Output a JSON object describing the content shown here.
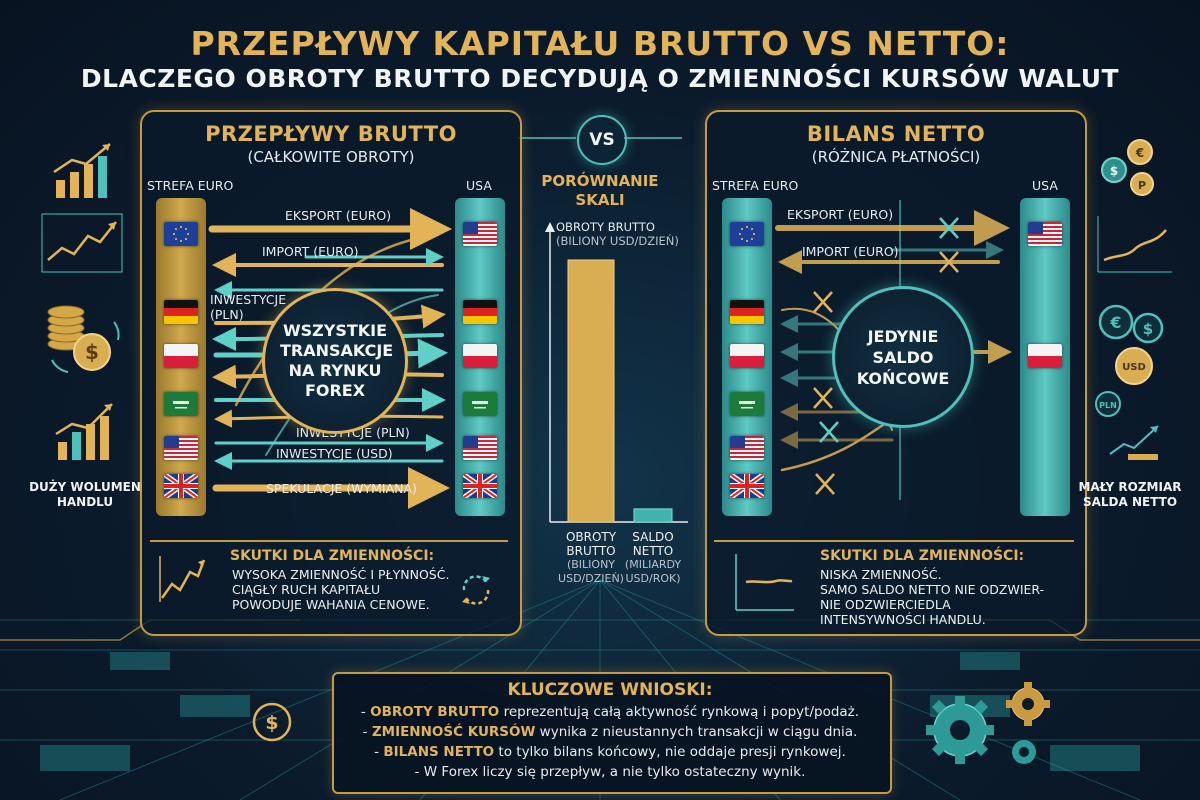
{
  "title": "PRZEPŁYWY KAPITAŁU BRUTTO VS NETTO:",
  "subtitle": "DLACZEGO OBROTY BRUTTO DECYDUJĄ O ZMIENNOŚCI KURSÓW WALUT",
  "vs_label": "VS",
  "left_panel": {
    "title": "PRZEPŁYWY BRUTTO",
    "subtitle": "(CAŁKOWITE OBROTY)",
    "left_column_label": "STREFA EURO",
    "right_column_label": "USA",
    "flows": [
      "EKSPORT (EURO)",
      "IMPORT (EURO)",
      "INWESTYCJE (PLN)",
      "INWESTYCJE (PLN)",
      "INWESTYCJE (USD)",
      "SPEKULACJE (WYMIANA)"
    ],
    "center_text": "WSZYSTKIE TRANSAKCJE NA RYNKU FOREX",
    "effects_title": "SKUTKI DLA ZMIENNOŚCI:",
    "effects_lines": [
      "WYSOKA ZMIENNOŚĆ I PŁYNNOŚĆ.",
      "CIĄGŁY RUCH KAPITAŁU",
      "POWODUJE WAHANIA CENOWE."
    ]
  },
  "right_panel": {
    "title": "BILANS NETTO",
    "subtitle": "(RÓŻNICA PŁATNOŚCI)",
    "left_column_label": "STREFA EURO",
    "right_column_label": "USA",
    "flows": [
      "EKSPORT (EURO)",
      "IMPORT (EURO)"
    ],
    "center_text": "JEDYNIE SALDO KOŃCOWE",
    "effects_title": "SKUTKI DLA ZMIENNOŚCI:",
    "effects_lines": [
      "NISKA ZMIENNOŚĆ.",
      "SAMO SALDO NETTO NIE ODZWIER-",
      "NIE ODZWIERCIEDLA",
      "INTENSYWNOŚCI HANDLU."
    ]
  },
  "flags": [
    "eu",
    "de",
    "pl",
    "sa",
    "us",
    "gb"
  ],
  "comparison": {
    "title_line1": "PORÓWNANIE",
    "title_line2": "SKALI",
    "axis_label_line1": "OBROTY BRUTTO",
    "axis_label_line2": "(BILIONY USD/DZIEŃ)",
    "bar1_fraction": 1.0,
    "bar2_fraction": 0.05,
    "bar1_label": "OBROTY BRUTTO",
    "bar1_unit": "(BILIONY USD/DZIEŃ)",
    "bar2_label": "SALDO NETTO",
    "bar2_unit": "(MILIARDY USD/ROK)"
  },
  "side_left_caption": "DUŻY WOLUMEN HANDLU",
  "side_right_caption": "MAŁY ROZMIAR SALDA NETTO",
  "key_takeaways": {
    "title": "KLUCZOWE WNIOSKI:",
    "lines": [
      {
        "prefix": "- ",
        "highlight": "OBROTY BRUTTO",
        "rest": " reprezentują całą aktywność rynkową i popyt/podaż."
      },
      {
        "prefix": "- ",
        "highlight": "ZMIENNOŚĆ KURSÓW",
        "rest": " wynika z nieustannych transakcji w ciągu dnia."
      },
      {
        "prefix": "- ",
        "highlight": "BILANS NETTO",
        "rest": " to tylko bilans końcowy, nie oddaje presji rynkowej."
      },
      {
        "prefix": "- ",
        "highlight": "",
        "rest": "W Forex liczy się przepływ, a nie tylko ostateczny wynik."
      }
    ]
  },
  "colors": {
    "gold": "#e2b457",
    "teal": "#4fc0bb",
    "background": "#0b1b2c"
  },
  "icons": {
    "right_coins": [
      "€",
      "$",
      "P",
      "€",
      "$",
      "USD",
      "PLN"
    ],
    "bottom_dollar": "$"
  }
}
